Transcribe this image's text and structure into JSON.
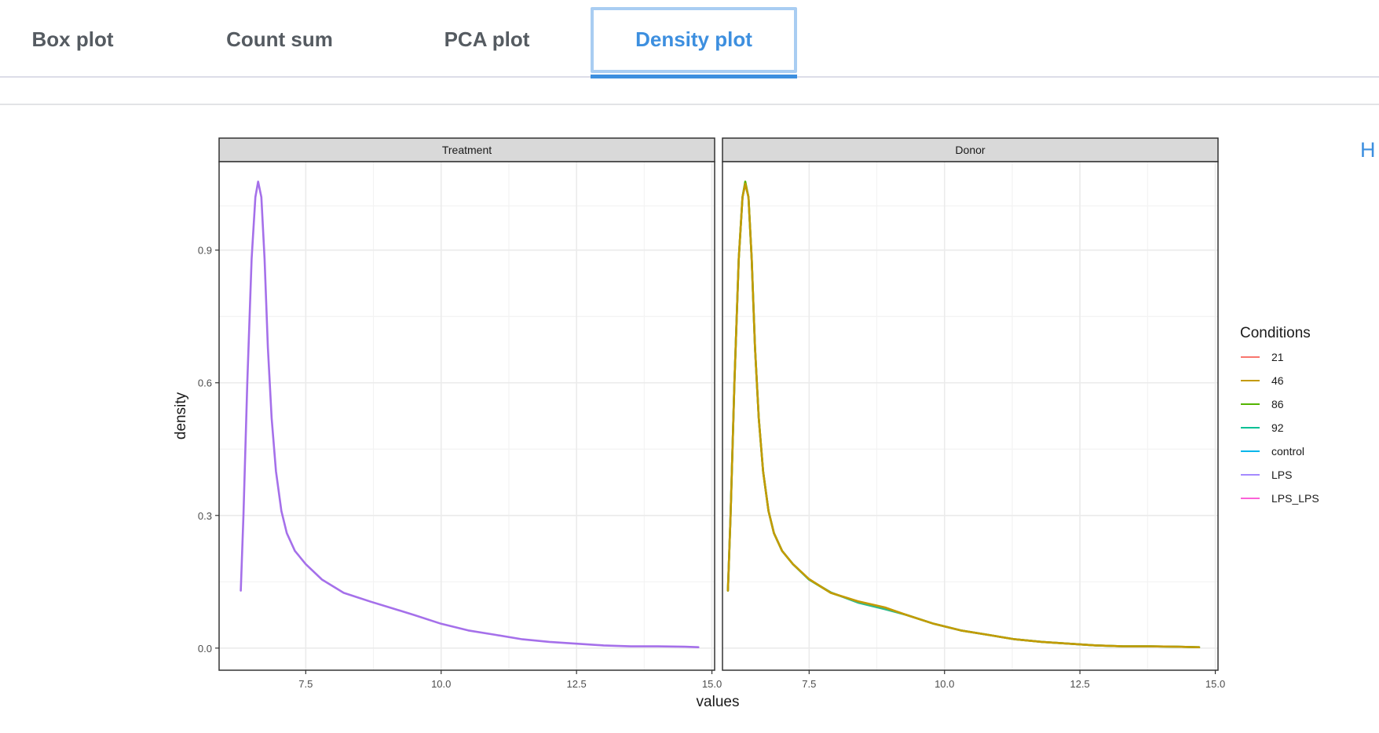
{
  "tabs": [
    {
      "label": "Box plot",
      "active": false
    },
    {
      "label": "Count sum",
      "active": false
    },
    {
      "label": "PCA plot",
      "active": false
    },
    {
      "label": "Density plot",
      "active": true
    }
  ],
  "right_cut_text": "H",
  "colors": {
    "accent": "#3d8fdf",
    "tab_text": "#555b61",
    "strip_bg": "#d9d9d9",
    "grid": "#ebebeb"
  },
  "chart_data": {
    "type": "line",
    "xlabel": "values",
    "ylabel": "density",
    "xlim": [
      5.9,
      15.05
    ],
    "ylim": [
      -0.05,
      1.1
    ],
    "xticks": [
      7.5,
      10.0,
      12.5,
      15.0
    ],
    "xtick_labels": [
      "7.5",
      "10.0",
      "12.5",
      "15.0"
    ],
    "yticks": [
      0.0,
      0.3,
      0.6,
      0.9
    ],
    "ytick_labels": [
      "0.0",
      "0.3",
      "0.6",
      "0.9"
    ],
    "grid": true,
    "legend": {
      "title": "Conditions",
      "position": "right",
      "items": [
        {
          "label": "21",
          "color": "#f8766d"
        },
        {
          "label": "46",
          "color": "#c49a00"
        },
        {
          "label": "86",
          "color": "#53b400"
        },
        {
          "label": "92",
          "color": "#00c094"
        },
        {
          "label": "control",
          "color": "#00b6eb"
        },
        {
          "label": "LPS",
          "color": "#a58aff"
        },
        {
          "label": "LPS_LPS",
          "color": "#fb61d7"
        }
      ]
    },
    "panels": [
      {
        "title": "Treatment",
        "series": [
          {
            "name": "LPS",
            "color": "#a570ea",
            "x": [
              6.3,
              6.35,
              6.42,
              6.5,
              6.57,
              6.62,
              6.68,
              6.74,
              6.8,
              6.87,
              6.95,
              7.05,
              7.15,
              7.3,
              7.5,
              7.8,
              8.2,
              8.7,
              9.1,
              9.5,
              10.0,
              10.5,
              11.0,
              11.5,
              12.0,
              12.5,
              13.0,
              13.5,
              14.0,
              14.5,
              14.75
            ],
            "y": [
              0.13,
              0.3,
              0.6,
              0.88,
              1.02,
              1.055,
              1.02,
              0.88,
              0.68,
              0.52,
              0.4,
              0.31,
              0.26,
              0.22,
              0.19,
              0.155,
              0.125,
              0.105,
              0.09,
              0.075,
              0.055,
              0.04,
              0.03,
              0.02,
              0.014,
              0.01,
              0.006,
              0.004,
              0.004,
              0.003,
              0.002
            ]
          }
        ]
      },
      {
        "title": "Donor",
        "series": [
          {
            "name": "86",
            "color": "#53b400",
            "x": [
              6.0,
              6.05,
              6.12,
              6.2,
              6.27,
              6.32,
              6.38,
              6.44,
              6.5,
              6.57,
              6.65,
              6.75,
              6.85,
              7.0,
              7.2,
              7.5,
              7.9,
              8.4,
              8.9,
              9.3,
              9.8,
              10.3,
              10.8,
              11.3,
              11.8,
              12.3,
              12.8,
              13.3,
              13.8,
              14.3,
              14.7
            ],
            "y": [
              0.13,
              0.3,
              0.6,
              0.88,
              1.02,
              1.055,
              1.02,
              0.88,
              0.68,
              0.52,
              0.4,
              0.31,
              0.26,
              0.22,
              0.19,
              0.155,
              0.125,
              0.105,
              0.09,
              0.075,
              0.055,
              0.04,
              0.03,
              0.02,
              0.014,
              0.01,
              0.006,
              0.004,
              0.004,
              0.003,
              0.002
            ]
          },
          {
            "name": "92",
            "color": "#2fb98a",
            "x": [
              6.0,
              6.05,
              6.12,
              6.2,
              6.27,
              6.32,
              6.38,
              6.44,
              6.5,
              6.57,
              6.65,
              6.75,
              6.85,
              7.0,
              7.2,
              7.5,
              7.9,
              8.4,
              8.9,
              9.3,
              9.8,
              10.3,
              10.8,
              11.3,
              11.8,
              12.3,
              12.8,
              13.3,
              13.8,
              14.3,
              14.7
            ],
            "y": [
              0.13,
              0.3,
              0.6,
              0.88,
              1.02,
              1.05,
              1.02,
              0.88,
              0.68,
              0.52,
              0.4,
              0.31,
              0.26,
              0.22,
              0.19,
              0.155,
              0.126,
              0.103,
              0.088,
              0.075,
              0.055,
              0.04,
              0.03,
              0.02,
              0.014,
              0.01,
              0.006,
              0.004,
              0.004,
              0.003,
              0.002
            ]
          },
          {
            "name": "46",
            "color": "#c49a00",
            "x": [
              6.0,
              6.05,
              6.12,
              6.2,
              6.27,
              6.32,
              6.38,
              6.44,
              6.5,
              6.57,
              6.65,
              6.75,
              6.85,
              7.0,
              7.2,
              7.5,
              7.9,
              8.4,
              8.9,
              9.3,
              9.8,
              10.3,
              10.8,
              11.3,
              11.8,
              12.3,
              12.8,
              13.3,
              13.8,
              14.3,
              14.7
            ],
            "y": [
              0.13,
              0.3,
              0.6,
              0.88,
              1.02,
              1.05,
              1.02,
              0.88,
              0.68,
              0.52,
              0.4,
              0.31,
              0.26,
              0.22,
              0.19,
              0.156,
              0.125,
              0.106,
              0.092,
              0.075,
              0.055,
              0.04,
              0.03,
              0.02,
              0.014,
              0.01,
              0.006,
              0.004,
              0.004,
              0.003,
              0.002
            ]
          }
        ]
      }
    ]
  }
}
